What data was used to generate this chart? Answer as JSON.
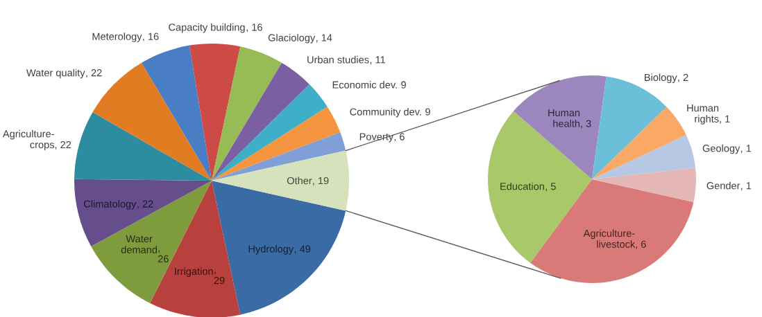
{
  "chart_data": [
    {
      "type": "pie",
      "categories": [
        "Hydrology",
        "Irrigation",
        "Water\ndemand",
        "Climatology",
        "Agriculture-\ncrops",
        "Water quality",
        "Meterology",
        "Capacity building",
        "Glaciology",
        "Urban studies",
        "Economic dev.",
        "Community dev.",
        "Poverty",
        "Other"
      ],
      "values": [
        49,
        29,
        26,
        22,
        22,
        22,
        16,
        16,
        14,
        11,
        9,
        9,
        6,
        19
      ],
      "colors": [
        "#3b6ba5",
        "#b9413d",
        "#7e9c3e",
        "#664d8c",
        "#2e8ca0",
        "#e27c22",
        "#4a7ec4",
        "#cc4b46",
        "#97bb55",
        "#7b5fa3",
        "#3fafc8",
        "#f5953f",
        "#7f9fd6",
        "#d6e2bc"
      ],
      "value_labels": [
        ", 49",
        ",\n29",
        ",\n26",
        ", 22",
        ", 22",
        ", 22",
        ", 16",
        ", 16",
        ", 14",
        ", 11",
        " 9",
        " 9",
        ", 6",
        ", 19"
      ]
    },
    {
      "type": "pie",
      "categories": [
        "Agriculture-\nlivestock",
        "Education",
        "Human\nhealth",
        "Biology",
        "Human\nrights",
        "Geology",
        "Gender"
      ],
      "values": [
        6,
        5,
        3,
        2,
        1,
        1,
        1
      ],
      "colors": [
        "#d97978",
        "#a8c86a",
        "#9b87bd",
        "#6bbfd9",
        "#f9a866",
        "#b6c8e3",
        "#e4b6b6"
      ],
      "value_labels": [
        ", 6",
        ", 5",
        ", 3",
        ", 2",
        ", 1",
        ", 1",
        ", 1"
      ]
    }
  ]
}
